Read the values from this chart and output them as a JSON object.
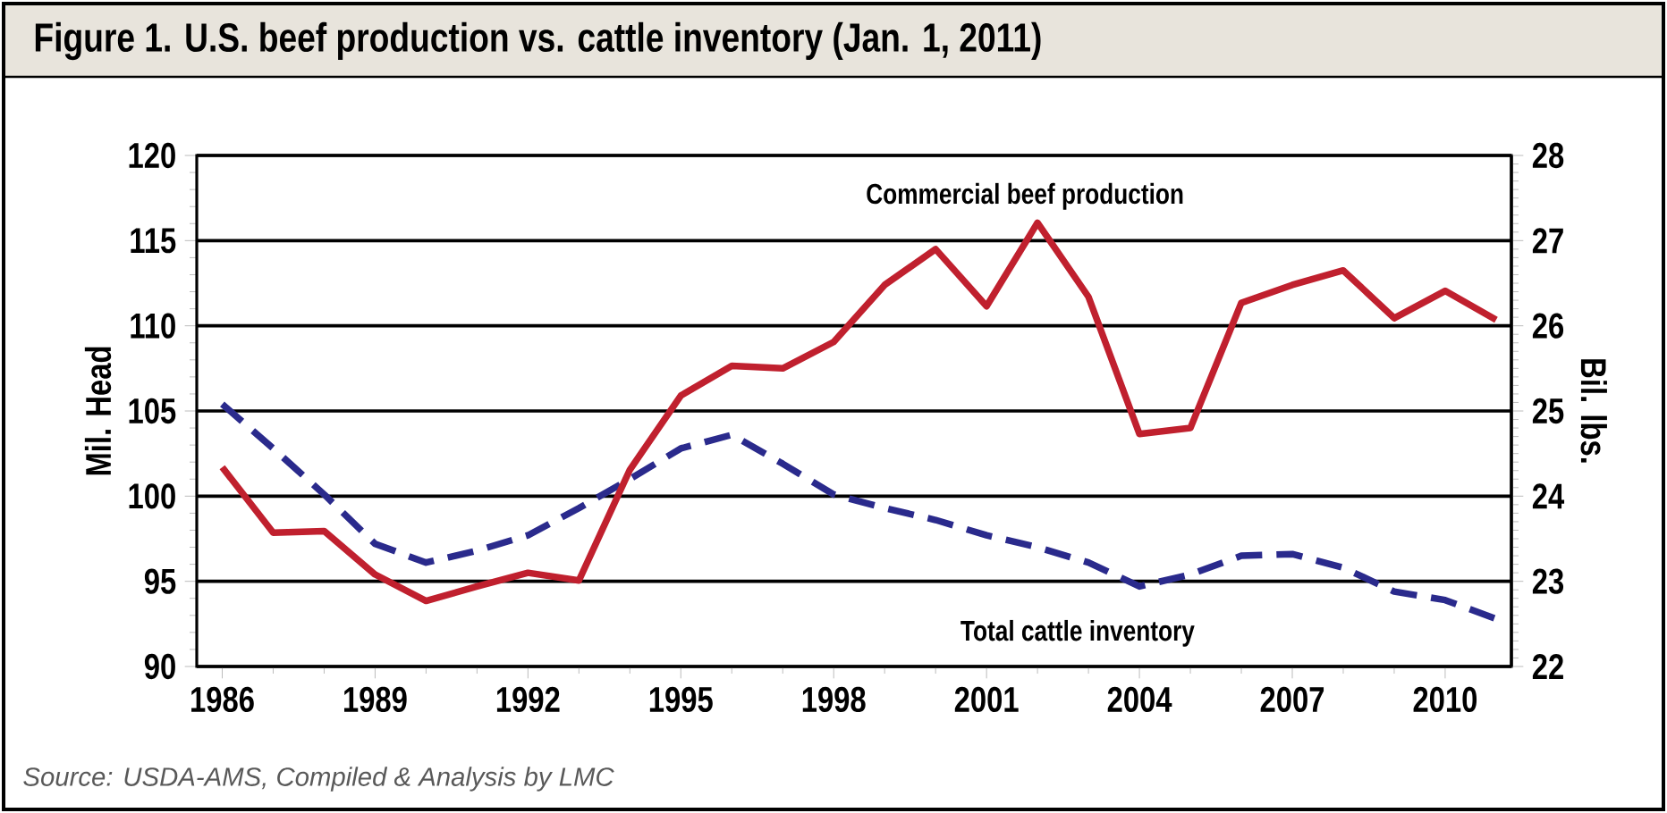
{
  "chart_data": {
    "type": "line",
    "title": "Figure 1. U.S. beef production vs. cattle inventory (Jan. 1, 2011)",
    "ylabel": "Mil. Head",
    "y2label": "Bil. lbs.",
    "x": [
      1986,
      1987,
      1988,
      1989,
      1990,
      1991,
      1992,
      1993,
      1994,
      1995,
      1996,
      1997,
      1998,
      1999,
      2000,
      2001,
      2002,
      2003,
      2004,
      2005,
      2006,
      2007,
      2008,
      2009,
      2010,
      2011
    ],
    "series": [
      {
        "name": "Commercial beef production",
        "color": "#c0202e",
        "axis": "y2",
        "line_style": "solid",
        "values": [
          24.34,
          23.57,
          23.59,
          23.08,
          22.77,
          22.94,
          23.1,
          23.01,
          24.31,
          25.18,
          25.53,
          25.5,
          25.81,
          26.48,
          26.9,
          26.23,
          27.21,
          26.34,
          24.73,
          24.8,
          26.27,
          26.48,
          26.65,
          26.09,
          26.41,
          26.07
        ]
      },
      {
        "name": "Total cattle inventory",
        "color": "#2a2a8c",
        "axis": "y",
        "line_style": "dashed",
        "values": [
          105.4,
          102.8,
          100.1,
          97.2,
          96.1,
          96.8,
          97.7,
          99.3,
          101.0,
          102.8,
          103.6,
          101.9,
          100.1,
          99.3,
          98.6,
          97.7,
          97.0,
          96.1,
          94.7,
          95.4,
          96.5,
          96.6,
          95.8,
          94.4,
          93.9,
          92.8
        ]
      }
    ],
    "xlim": [
      1985.5,
      2011.3
    ],
    "xticks": [
      1986,
      1989,
      1992,
      1995,
      1998,
      2001,
      2004,
      2007,
      2010
    ],
    "ylim": [
      90,
      120
    ],
    "yticks": [
      90,
      95,
      100,
      105,
      110,
      115,
      120
    ],
    "y2lim": [
      22,
      28
    ],
    "y2ticks": [
      22,
      23,
      24,
      25,
      26,
      27,
      28
    ],
    "grid": "y",
    "annotations": [
      "Source: USDA-AMS, Compiled & Analysis by LMC"
    ]
  }
}
